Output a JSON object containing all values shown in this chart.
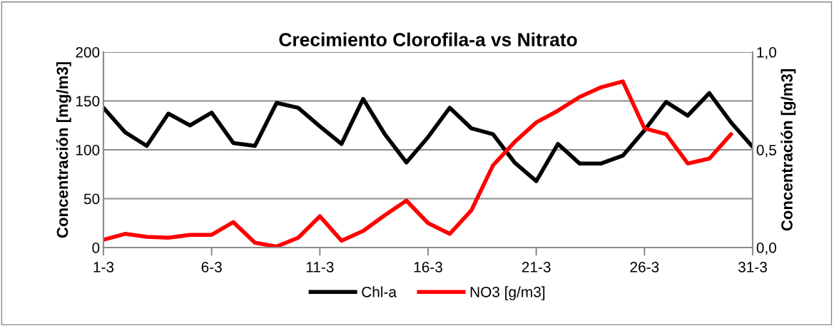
{
  "chart_data": {
    "type": "line",
    "title": "Crecimiento Clorofila-a vs Nitrato",
    "ylabel": "Concentración [mg/m3]",
    "y2label": "Concentración [g/m3]",
    "categories": [
      "1-3",
      null,
      null,
      null,
      null,
      "6-3",
      null,
      null,
      null,
      null,
      "11-3",
      null,
      null,
      null,
      null,
      "16-3",
      null,
      null,
      null,
      null,
      "21-3",
      null,
      null,
      null,
      null,
      "26-3",
      null,
      null,
      null,
      null,
      "31-3"
    ],
    "series": [
      {
        "name": "Chl-a",
        "color": "#000000",
        "values": [
          143,
          118,
          104,
          137,
          125,
          138,
          107,
          104,
          148,
          143,
          124,
          106,
          152,
          116,
          87,
          113,
          143,
          122,
          116,
          87,
          68,
          106,
          86,
          86,
          94,
          120,
          149,
          135,
          158,
          128,
          103
        ]
      },
      {
        "name": "NO3 [g/m3]",
        "color": "#ff0000",
        "axis": "y2",
        "values": [
          0.04,
          0.07,
          0.055,
          0.05,
          0.065,
          0.065,
          0.13,
          0.025,
          0.005,
          0.05,
          0.16,
          0.035,
          0.085,
          0.165,
          0.24,
          0.125,
          0.07,
          0.19,
          0.42,
          0.54,
          0.64,
          0.7,
          0.77,
          0.82,
          0.85,
          0.61,
          0.58,
          0.43,
          0.455,
          0.58,
          null
        ]
      }
    ],
    "ylim": [
      0,
      200
    ],
    "yticks": [
      0,
      50,
      100,
      150,
      200
    ],
    "y2lim": [
      0,
      1.0
    ],
    "y2ticks": [
      {
        "value": 0,
        "label": "0,0"
      },
      {
        "value": 0.5,
        "label": "0,5"
      },
      {
        "value": 1.0,
        "label": "1,0"
      }
    ],
    "grid": "y",
    "legend": "bottom",
    "marker": "none",
    "line_style": "solid"
  }
}
